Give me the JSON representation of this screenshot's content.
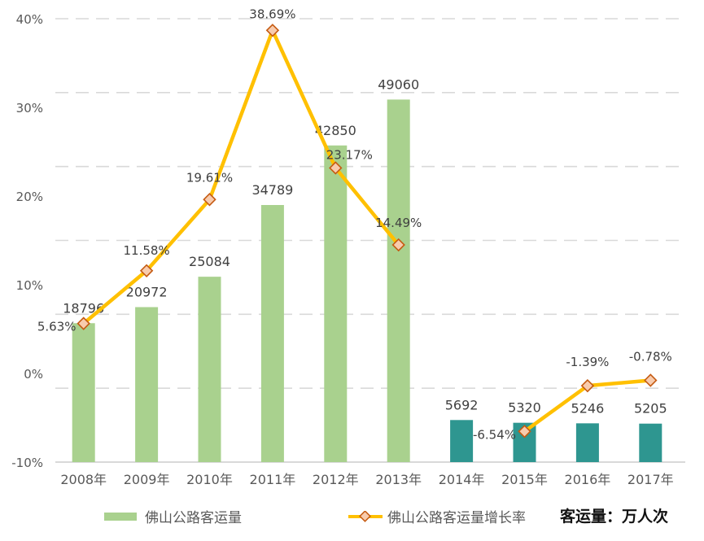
{
  "chart_data": {
    "type": "bar+line",
    "categories": [
      "2008年",
      "2009年",
      "2010年",
      "2011年",
      "2012年",
      "2013年",
      "2014年",
      "2015年",
      "2016年",
      "2017年"
    ],
    "series": [
      {
        "name": "佛山公路客运量",
        "type": "bar",
        "axis": "primary",
        "values": [
          18796,
          20972,
          25084,
          34789,
          42850,
          49060,
          5692,
          5320,
          5246,
          5205
        ],
        "data_labels": [
          "18796",
          "20972",
          "25084",
          "34789",
          "42850",
          "49060",
          "5692",
          "5320",
          "5246",
          "5205"
        ]
      },
      {
        "name": "佛山公路客运量增长率",
        "type": "line",
        "axis": "secondary",
        "values": [
          null,
          null,
          null,
          null,
          null,
          null,
          null,
          null,
          null,
          null
        ],
        "points": [
          {
            "category": "2008年",
            "value": 5.63,
            "label": "5.63%"
          },
          {
            "category": "2009年",
            "value": 11.58,
            "label": "11.58%"
          },
          {
            "category": "2010年",
            "value": 19.61,
            "label": "19.61%"
          },
          {
            "category": "2011年",
            "value": 38.69,
            "label": "38.69%"
          },
          {
            "category": "2012年",
            "value": 23.17,
            "label": "23.17%"
          },
          {
            "category": "2013年",
            "value": 14.49,
            "label": "14.49%"
          },
          {
            "category": "2015年",
            "value": -6.54,
            "label": "-6.54%"
          },
          {
            "category": "2016年",
            "value": -1.39,
            "label": "-1.39%"
          },
          {
            "category": "2017年",
            "value": -0.78,
            "label": "-0.78%"
          }
        ]
      }
    ],
    "primary_ylim": [
      0,
      60000
    ],
    "secondary_ylim": [
      -10,
      40
    ],
    "secondary_ticks": [
      "-10%",
      "0%",
      "10%",
      "20%",
      "30%",
      "40%"
    ],
    "grid": true,
    "legend_placement": "bottom",
    "unit_note": "客运量：万人次",
    "colors": {
      "bar_early": "#a9d18e",
      "bar_late": "#2e9690",
      "line": "#ffc000",
      "marker_fill": "#f8cbad",
      "marker_edge": "#c55a11"
    }
  }
}
